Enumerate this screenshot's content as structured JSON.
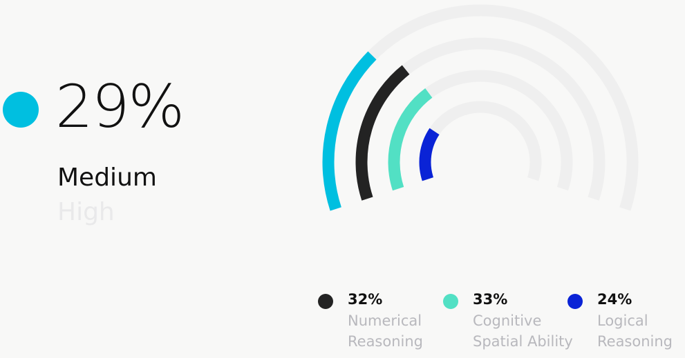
{
  "headline": {
    "value": "29%",
    "level_current": "Medium",
    "level_next": "High",
    "dot_color": "#00bfe0"
  },
  "chart_data": {
    "type": "radial-bar",
    "max": 100,
    "track_color": "#efefef",
    "series": [
      {
        "value": 29,
        "color": "#00bfe0"
      },
      {
        "name": "Numerical Reasoning",
        "value": 32,
        "label": "32%",
        "color": "#232323"
      },
      {
        "name": "Cognitive Spatial Ability",
        "value": 33,
        "label": "33%",
        "color": "#52e0c4"
      },
      {
        "name": "Logical Reasoning",
        "value": 24,
        "label": "24%",
        "color": "#0a23d6"
      }
    ]
  },
  "legend": [
    {
      "value": "32%",
      "line1": "Numerical",
      "line2": "Reasoning",
      "color": "#232323"
    },
    {
      "value": "33%",
      "line1": "Cognitive",
      "line2": "Spatial Ability",
      "color": "#52e0c4"
    },
    {
      "value": "24%",
      "line1": "Logical",
      "line2": "Reasoning",
      "color": "#0a23d6"
    }
  ]
}
